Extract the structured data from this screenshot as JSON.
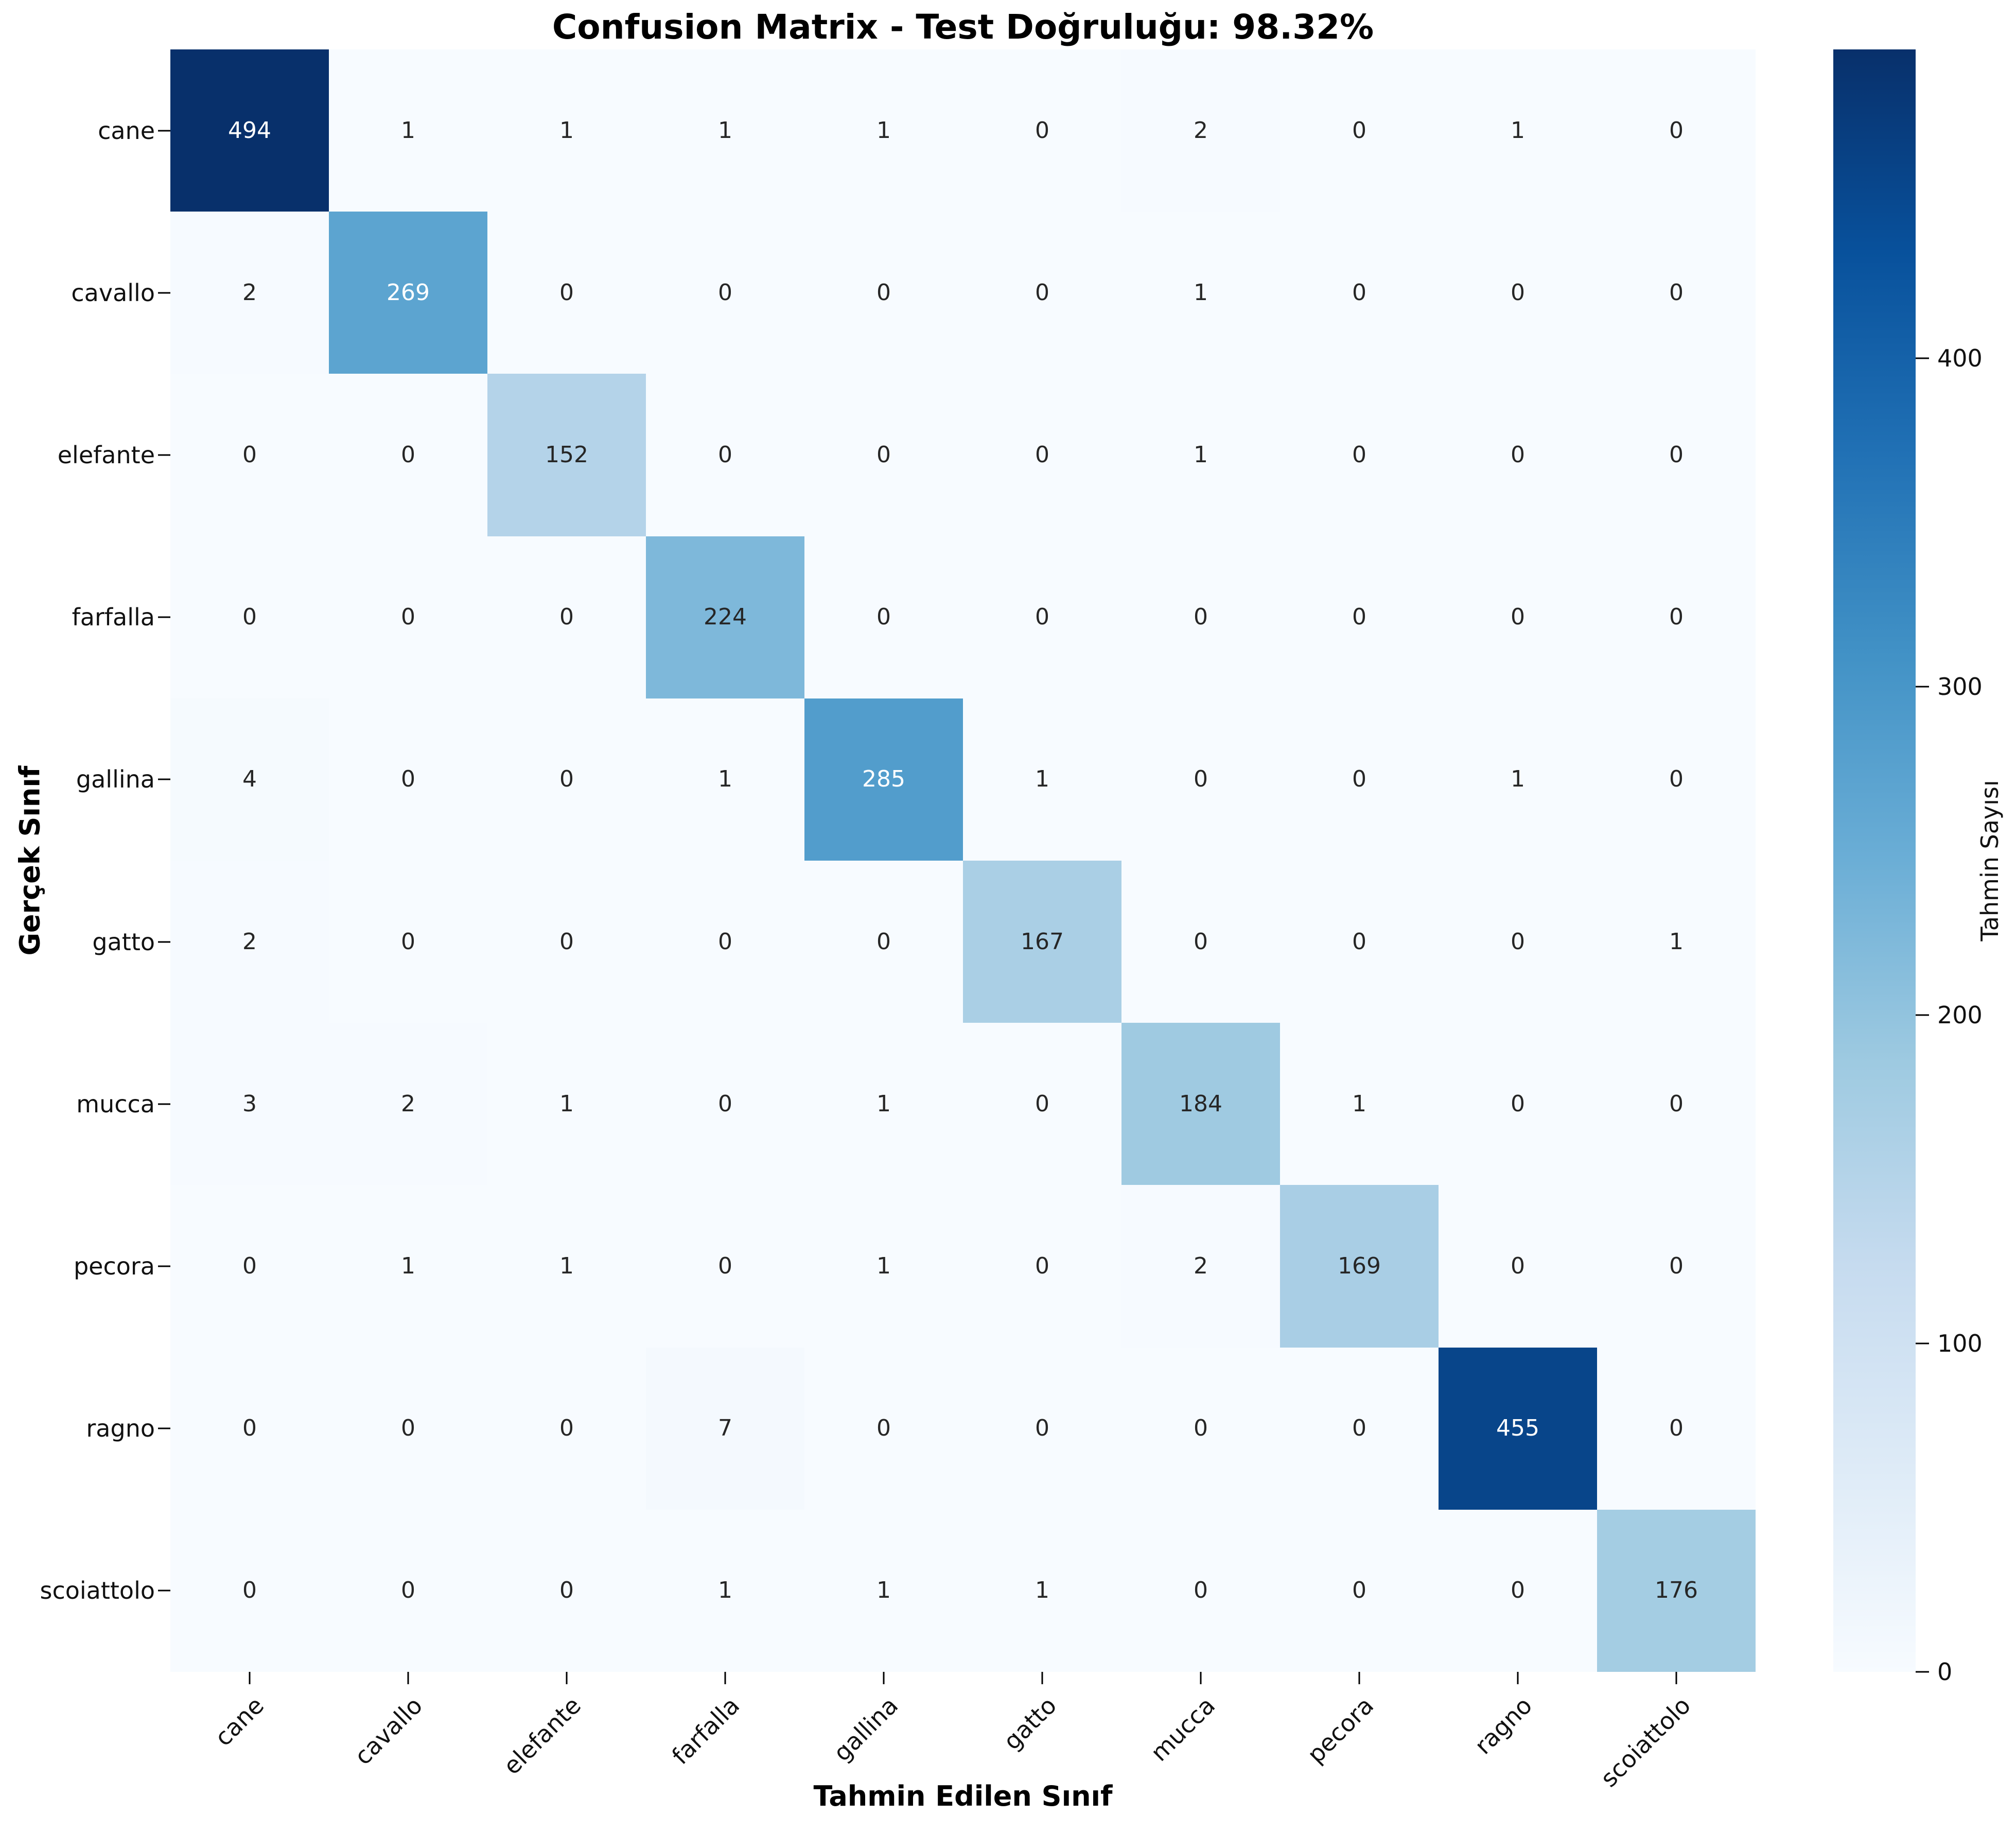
{
  "title": "Confusion Matrix - Test Doğruluğu: 98.32%",
  "xlabel": "Tahmin Edilen Sınıf",
  "ylabel": "Gerçek Sınıf",
  "colorbar": {
    "label": "Tahmin Sayısı",
    "ticks": [
      0,
      100,
      200,
      300,
      400
    ],
    "vmin": 0,
    "vmax": 494
  },
  "colors": {
    "background": "#ffffff",
    "zero_cell": "#f7fbff",
    "max_cell": "#08306b",
    "dark_text": "#262626",
    "light_text": "#ffffff",
    "tick": "#000000",
    "colormap_anchors": [
      "#f7fbff",
      "#deebf7",
      "#c6dbef",
      "#9ecae1",
      "#6baed6",
      "#4292c6",
      "#2171b5",
      "#08519c",
      "#08306b"
    ]
  },
  "chart_data": {
    "type": "heatmap",
    "title": "Confusion Matrix - Test Doğruluğu: 98.32%",
    "xlabel": "Tahmin Edilen Sınıf",
    "ylabel": "Gerçek Sınıf",
    "colormap": "Blues",
    "vmin": 0,
    "vmax": 494,
    "legend_position": "right-colorbar",
    "grid": false,
    "x_categories": [
      "cane",
      "cavallo",
      "elefante",
      "farfalla",
      "gallina",
      "gatto",
      "mucca",
      "pecora",
      "ragno",
      "scoiattolo"
    ],
    "y_categories": [
      "cane",
      "cavallo",
      "elefante",
      "farfalla",
      "gallina",
      "gatto",
      "mucca",
      "pecora",
      "ragno",
      "scoiattolo"
    ],
    "matrix": [
      [
        494,
        1,
        1,
        1,
        1,
        0,
        2,
        0,
        1,
        0
      ],
      [
        2,
        269,
        0,
        0,
        0,
        0,
        1,
        0,
        0,
        0
      ],
      [
        0,
        0,
        152,
        0,
        0,
        0,
        1,
        0,
        0,
        0
      ],
      [
        0,
        0,
        0,
        224,
        0,
        0,
        0,
        0,
        0,
        0
      ],
      [
        4,
        0,
        0,
        1,
        285,
        1,
        0,
        0,
        1,
        0
      ],
      [
        2,
        0,
        0,
        0,
        0,
        167,
        0,
        0,
        0,
        1
      ],
      [
        3,
        2,
        1,
        0,
        1,
        0,
        184,
        1,
        0,
        0
      ],
      [
        0,
        1,
        1,
        0,
        1,
        0,
        2,
        169,
        0,
        0
      ],
      [
        0,
        0,
        0,
        7,
        0,
        0,
        0,
        0,
        455,
        0
      ],
      [
        0,
        0,
        0,
        1,
        1,
        1,
        0,
        0,
        0,
        176
      ]
    ]
  }
}
